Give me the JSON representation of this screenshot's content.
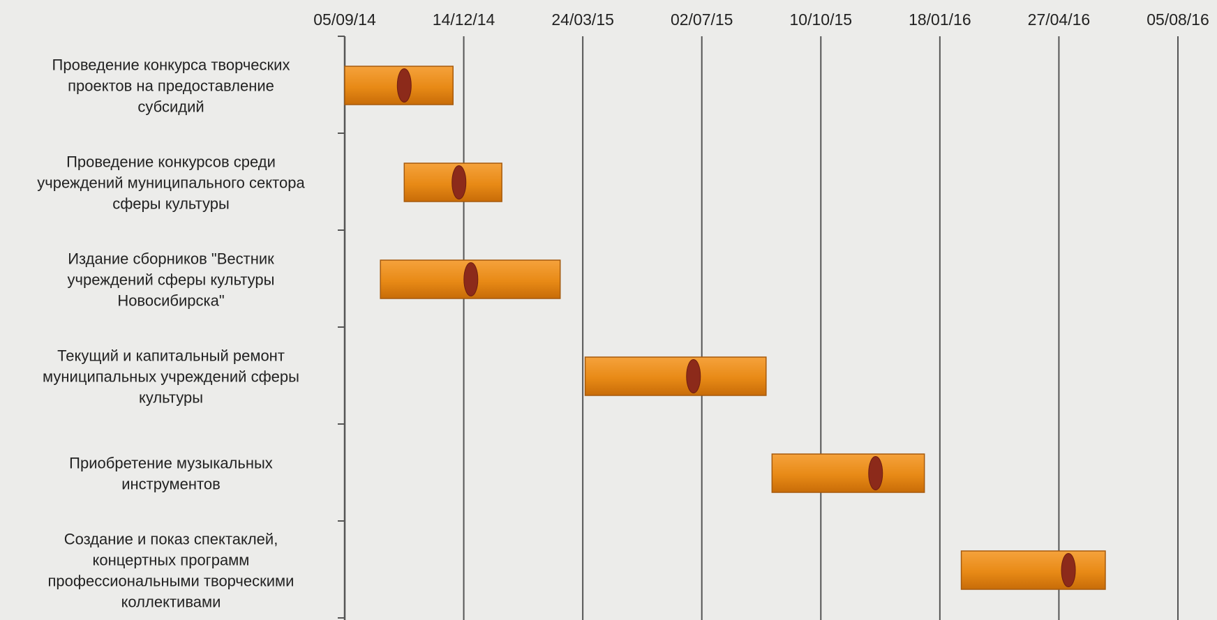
{
  "chart_data": {
    "type": "gantt",
    "x_ticks": [
      "05/09/14",
      "14/12/14",
      "24/03/15",
      "02/07/15",
      "10/10/15",
      "18/01/16",
      "27/04/16",
      "05/08/16"
    ],
    "xlim": [
      "2014-09-05",
      "2016-08-05"
    ],
    "grid": true,
    "tasks": [
      {
        "label_lines": [
          "Проведение конкурса творческих",
          "проектов на предоставление",
          "субсидий"
        ],
        "start": "2014-09-05",
        "end": "2014-12-05",
        "milestone": "2014-10-25"
      },
      {
        "label_lines": [
          "Проведение конкурсов среди",
          "учреждений муниципального сектора",
          "сферы культуры"
        ],
        "start": "2014-10-25",
        "end": "2015-01-15",
        "milestone": "2014-12-10"
      },
      {
        "label_lines": [
          "Издание сборников \"Вестник",
          "учреждений сферы культуры",
          "Новосибирска\""
        ],
        "start": "2014-10-05",
        "end": "2015-03-05",
        "milestone": "2014-12-20"
      },
      {
        "label_lines": [
          "Текущий и капитальный ремонт",
          "муниципальных учреждений сферы",
          "культуры"
        ],
        "start": "2015-03-26",
        "end": "2015-08-25",
        "milestone": "2015-06-25"
      },
      {
        "label_lines": [
          "Приобретение музыкальных",
          "инструментов"
        ],
        "start": "2015-08-30",
        "end": "2016-01-05",
        "milestone": "2015-11-25"
      },
      {
        "label_lines": [
          "Создание и показ спектаклей,",
          "концертных программ",
          "профессиональными творческими",
          "коллективами"
        ],
        "start": "2016-02-05",
        "end": "2016-06-05",
        "milestone": "2016-05-05"
      }
    ],
    "colors": {
      "bar_top": "#f5a23c",
      "bar_mid": "#e88a16",
      "bar_bottom": "#c86c08",
      "bar_border": "#a65a0c",
      "milestone": "#8c2a1a",
      "grid": "#555555"
    }
  }
}
